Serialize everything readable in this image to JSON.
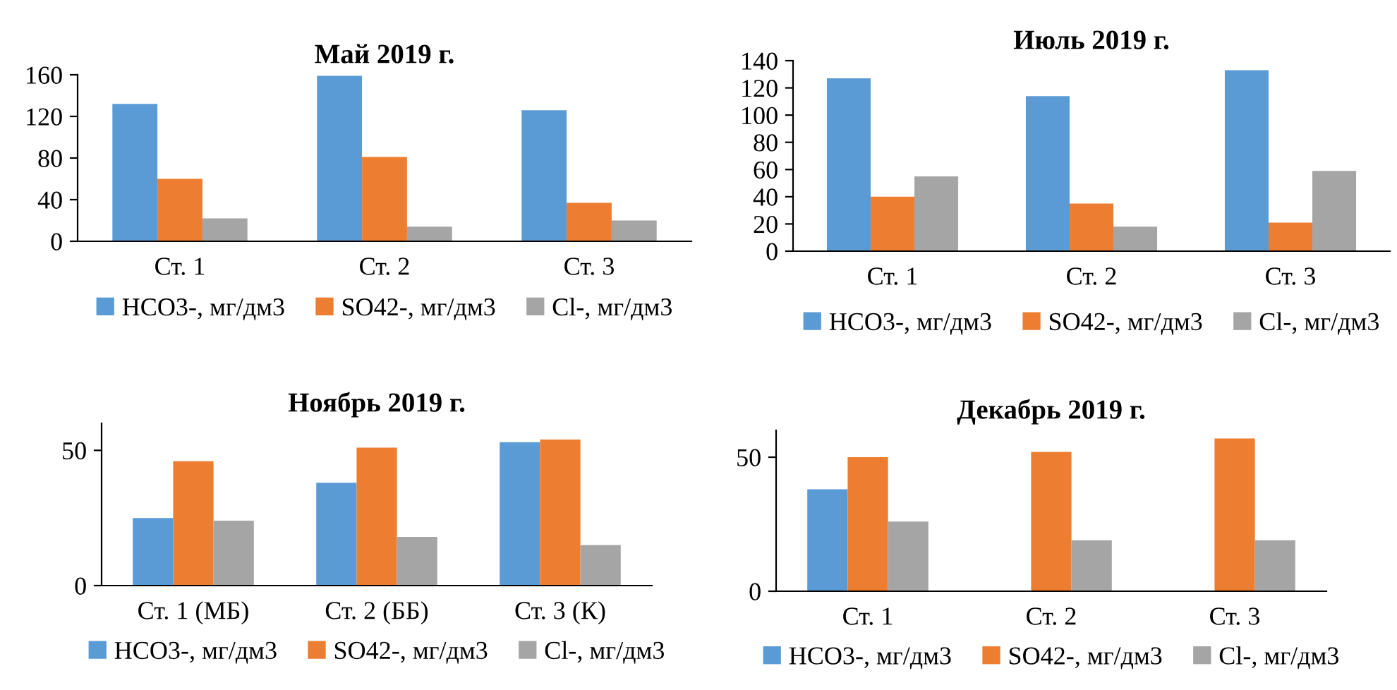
{
  "chart_data": [
    {
      "type": "bar",
      "title": "Май 2019 г.",
      "categories": [
        "Ст. 1",
        "Ст. 2",
        "Ст. 3"
      ],
      "ylim": [
        0,
        160
      ],
      "yticks": [
        0,
        40,
        80,
        120,
        160
      ],
      "grid": false,
      "legend": "bottom",
      "series": [
        {
          "name": "HCO3-, мг/дм3",
          "color": "#5b9bd5",
          "values": [
            132,
            159,
            126
          ]
        },
        {
          "name": "SO42-, мг/дм3",
          "color": "#ed7d31",
          "values": [
            60,
            81,
            37
          ]
        },
        {
          "name": "Cl-, мг/дм3",
          "color": "#a5a5a5",
          "values": [
            22,
            14,
            20
          ]
        }
      ]
    },
    {
      "type": "bar",
      "title": "Июль 2019 г.",
      "categories": [
        "Ст. 1",
        "Ст. 2",
        "Ст. 3"
      ],
      "ylim": [
        0,
        140
      ],
      "yticks": [
        0,
        20,
        40,
        60,
        80,
        100,
        120,
        140
      ],
      "grid": false,
      "legend": "bottom",
      "series": [
        {
          "name": "HCO3-, мг/дм3",
          "color": "#5b9bd5",
          "values": [
            127,
            114,
            133
          ]
        },
        {
          "name": "SO42-, мг/дм3",
          "color": "#ed7d31",
          "values": [
            40,
            35,
            21
          ]
        },
        {
          "name": "Cl-, мг/дм3",
          "color": "#a5a5a5",
          "values": [
            55,
            18,
            59
          ]
        }
      ]
    },
    {
      "type": "bar",
      "title": "Ноябрь 2019 г.",
      "categories": [
        "Ст. 1 (МБ)",
        "Ст. 2 (ББ)",
        "Ст. 3 (К)"
      ],
      "ylim": [
        0,
        60
      ],
      "yticks": [
        0,
        50
      ],
      "grid": false,
      "legend": "bottom",
      "series": [
        {
          "name": "HCO3-, мг/дм3",
          "color": "#5b9bd5",
          "values": [
            25,
            38,
            53
          ]
        },
        {
          "name": "SO42-, мг/дм3",
          "color": "#ed7d31",
          "values": [
            46,
            51,
            54
          ]
        },
        {
          "name": "Cl-, мг/дм3",
          "color": "#a5a5a5",
          "values": [
            24,
            18,
            15
          ]
        }
      ]
    },
    {
      "type": "bar",
      "title": "Декабрь 2019 г.",
      "categories": [
        "Ст. 1",
        "Ст. 2",
        "Ст. 3"
      ],
      "ylim": [
        0,
        60
      ],
      "yticks": [
        0,
        50
      ],
      "grid": false,
      "legend": "bottom",
      "series": [
        {
          "name": "HCO3-, мг/дм3",
          "color": "#5b9bd5",
          "values": [
            38,
            null,
            null
          ]
        },
        {
          "name": "SO42-, мг/дм3",
          "color": "#ed7d31",
          "values": [
            50,
            52,
            57
          ]
        },
        {
          "name": "Cl-, мг/дм3",
          "color": "#a5a5a5",
          "values": [
            26,
            19,
            19
          ]
        }
      ]
    }
  ]
}
